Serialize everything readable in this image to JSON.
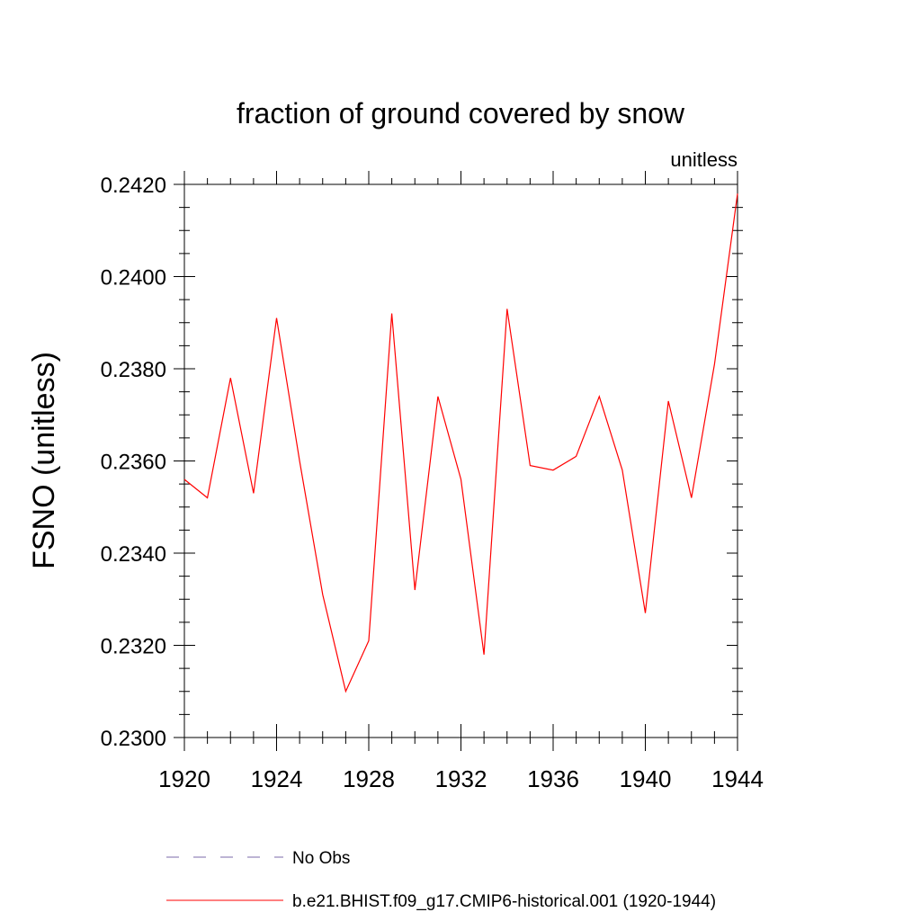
{
  "chart_data": {
    "type": "line",
    "title": "fraction of ground covered by snow",
    "units_label": "unitless",
    "xlabel": "",
    "ylabel": "FSNO  (unitless)",
    "xlim": [
      1920,
      1944
    ],
    "ylim": [
      0.23,
      0.242
    ],
    "x_ticks": [
      1920,
      1924,
      1928,
      1932,
      1936,
      1940,
      1944
    ],
    "x_tick_labels": [
      "1920",
      "1924",
      "1928",
      "1932",
      "1936",
      "1940",
      "1944"
    ],
    "y_ticks": [
      0.23,
      0.232,
      0.234,
      0.236,
      0.238,
      0.24,
      0.242
    ],
    "y_tick_labels": [
      "0.2300",
      "0.2320",
      "0.2340",
      "0.2360",
      "0.2380",
      "0.2400",
      "0.2420"
    ],
    "grid": false,
    "legend_position": "bottom",
    "series": [
      {
        "name": "b.e21.BHIST.f09_g17.CMIP6-historical.001 (1920-1944)",
        "color": "#ff0000",
        "style": "solid",
        "x": [
          1920,
          1921,
          1922,
          1923,
          1924,
          1925,
          1926,
          1927,
          1928,
          1929,
          1930,
          1931,
          1932,
          1933,
          1934,
          1935,
          1936,
          1937,
          1938,
          1939,
          1940,
          1941,
          1942,
          1943,
          1944
        ],
        "y": [
          0.2356,
          0.2352,
          0.2378,
          0.2353,
          0.2391,
          0.236,
          0.2331,
          0.231,
          0.2321,
          0.2392,
          0.2332,
          0.2374,
          0.2356,
          0.2318,
          0.2393,
          0.2359,
          0.2358,
          0.2361,
          0.2374,
          0.2358,
          0.2327,
          0.2373,
          0.2352,
          0.2381,
          0.2418
        ]
      }
    ],
    "legend": [
      {
        "label": "No Obs",
        "color": "#7b68a8",
        "style": "dashed"
      },
      {
        "label": "b.e21.BHIST.f09_g17.CMIP6-historical.001 (1920-1944)",
        "color": "#ff0000",
        "style": "solid"
      }
    ]
  }
}
